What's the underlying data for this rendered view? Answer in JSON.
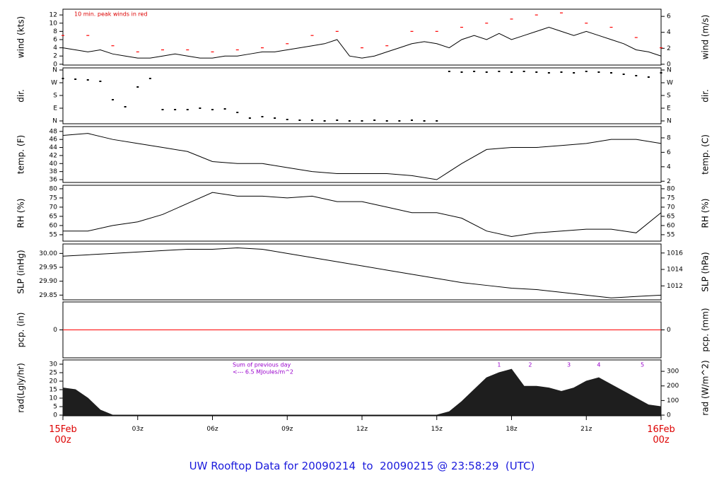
{
  "title": "UW Rooftop Data for 20090214  to  20090215 @ 23:58:29  (UTC)",
  "chart_data": [
    {
      "type": "line",
      "ylabel": "wind (kts)",
      "y2label": "wind (m/s)",
      "xlim": [
        0,
        24
      ],
      "ylim": [
        -0.2,
        13.4
      ],
      "yticks": [
        0,
        2,
        4,
        6,
        8,
        10,
        12
      ],
      "y2lim": [
        -0.1,
        6.9
      ],
      "y2ticks": [
        0,
        2,
        4,
        6
      ],
      "notes": [
        "10 min. peak winds in red"
      ],
      "note_color": "#dd0000",
      "series": [
        {
          "style": "line",
          "color": "#000000",
          "x": [
            0,
            0.5,
            1,
            1.5,
            2,
            2.5,
            3,
            3.5,
            4,
            4.5,
            5,
            5.5,
            6,
            6.5,
            7,
            7.5,
            8,
            8.5,
            9,
            9.5,
            10,
            10.5,
            11,
            11.5,
            12,
            12.5,
            13,
            13.5,
            14,
            14.5,
            15,
            15.5,
            16,
            16.5,
            17,
            17.5,
            18,
            18.5,
            19,
            19.5,
            20,
            20.5,
            21,
            21.5,
            22,
            22.5,
            23,
            23.5,
            24
          ],
          "values": [
            4,
            3.5,
            3,
            3.5,
            2.5,
            2,
            1.5,
            1.5,
            2,
            2.5,
            2,
            1.5,
            1.5,
            2,
            2,
            2.5,
            3,
            3,
            3.5,
            4,
            4.5,
            5,
            6,
            2,
            1.5,
            2,
            3,
            4,
            5,
            5.5,
            5,
            4,
            6,
            7,
            6,
            7.5,
            6,
            7,
            8,
            9,
            8,
            7,
            8,
            7,
            6,
            5,
            3.5,
            3,
            2
          ]
        },
        {
          "style": "dash",
          "color": "#ff0000",
          "x": [
            0,
            1,
            2,
            3,
            4,
            5,
            6,
            7,
            8,
            9,
            10,
            11,
            12,
            13,
            14,
            15,
            16,
            17,
            18,
            19,
            20,
            21,
            22,
            23,
            24
          ],
          "values": [
            7,
            7,
            4.5,
            3,
            3.5,
            3.5,
            3,
            3.5,
            4,
            5,
            7,
            8,
            4,
            4.5,
            8,
            8,
            9,
            10,
            11,
            12,
            12.5,
            10,
            9,
            6.5,
            4
          ]
        }
      ]
    },
    {
      "type": "line",
      "ylabel": "dir.",
      "y2label": "dir.",
      "xlim": [
        0,
        24
      ],
      "ylim": [
        -20,
        375
      ],
      "yticks": [
        {
          "value": 0,
          "label": "N"
        },
        {
          "value": 90,
          "label": "E"
        },
        {
          "value": 180,
          "label": "S"
        },
        {
          "value": 270,
          "label": "W"
        },
        {
          "value": 360,
          "label": "N"
        }
      ],
      "y2lim": [
        -20,
        375
      ],
      "y2ticks": [
        {
          "value": 0,
          "label": "N"
        },
        {
          "value": 90,
          "label": "E"
        },
        {
          "value": 180,
          "label": "S"
        },
        {
          "value": 270,
          "label": "W"
        },
        {
          "value": 360,
          "label": "N"
        }
      ],
      "series": [
        {
          "style": "dot",
          "color": "#000000",
          "x": [
            0,
            0.5,
            1,
            1.5,
            2,
            2.5,
            3,
            3.5,
            4,
            4.5,
            5,
            5.5,
            6,
            6.5,
            7,
            7.5,
            8,
            8.5,
            9,
            9.5,
            10,
            10.5,
            11,
            11.5,
            12,
            12.5,
            13,
            13.5,
            14,
            14.5,
            15,
            15.5,
            16,
            16.5,
            17,
            17.5,
            18,
            18.5,
            19,
            19.5,
            20,
            20.5,
            21,
            21.5,
            22,
            22.5,
            23,
            23.5,
            24
          ],
          "values": [
            300,
            295,
            290,
            280,
            150,
            100,
            240,
            300,
            80,
            80,
            80,
            90,
            80,
            85,
            60,
            20,
            30,
            20,
            10,
            5,
            5,
            0,
            5,
            0,
            0,
            5,
            0,
            0,
            5,
            0,
            0,
            350,
            345,
            350,
            345,
            350,
            345,
            350,
            345,
            340,
            345,
            340,
            350,
            345,
            340,
            330,
            320,
            310,
            340
          ]
        }
      ]
    },
    {
      "type": "line",
      "ylabel": "temp. (F)",
      "y2label": "temp. (C)",
      "xlim": [
        0,
        24
      ],
      "ylim": [
        35.3,
        49.2
      ],
      "yticks": [
        36,
        38,
        40,
        42,
        44,
        46,
        48
      ],
      "y2lim": [
        1.83,
        9.56
      ],
      "y2ticks": [
        2,
        4,
        6,
        8
      ],
      "series": [
        {
          "style": "line",
          "color": "#000000",
          "x": [
            0,
            1,
            2,
            3,
            4,
            5,
            6,
            7,
            8,
            9,
            10,
            11,
            12,
            13,
            14,
            15,
            16,
            17,
            18,
            19,
            20,
            21,
            22,
            23,
            24
          ],
          "values": [
            47,
            47.5,
            46,
            45,
            44,
            43,
            40.5,
            40,
            40,
            39,
            38,
            37.5,
            37.5,
            37.5,
            37,
            36,
            40,
            43.5,
            44,
            44,
            44.5,
            45,
            46,
            46,
            45
          ]
        }
      ]
    },
    {
      "type": "line",
      "ylabel": "RH (%)",
      "y2label": "RH (%)",
      "xlim": [
        0,
        24
      ],
      "ylim": [
        51.5,
        81.9
      ],
      "yticks": [
        55,
        60,
        65,
        70,
        75,
        80
      ],
      "y2lim": [
        51.5,
        81.9
      ],
      "y2ticks": [
        55,
        60,
        65,
        70,
        75,
        80
      ],
      "series": [
        {
          "style": "line",
          "color": "#000000",
          "x": [
            0,
            1,
            2,
            3,
            4,
            5,
            6,
            7,
            8,
            9,
            10,
            11,
            12,
            13,
            14,
            15,
            16,
            17,
            18,
            19,
            20,
            21,
            22,
            23,
            24
          ],
          "values": [
            57,
            57,
            60,
            62,
            66,
            72,
            78,
            76,
            76,
            75,
            76,
            73,
            73,
            70,
            67,
            67,
            64,
            57,
            54,
            56,
            57,
            58,
            58,
            56,
            67
          ]
        }
      ]
    },
    {
      "type": "line",
      "ylabel": "SLP (inHg)",
      "y2label": "SLP (hPa)",
      "xlim": [
        0,
        24
      ],
      "ylim": [
        29.833,
        30.034
      ],
      "yticks": [
        {
          "value": 29.85,
          "label": "29.85"
        },
        {
          "value": 29.9,
          "label": "29.90"
        },
        {
          "value": 29.95,
          "label": "29.95"
        },
        {
          "value": 30,
          "label": "30.00"
        }
      ],
      "y2lim": [
        1010.3,
        1017.1
      ],
      "y2ticks": [
        1012,
        1014,
        1016
      ],
      "series": [
        {
          "style": "line",
          "color": "#000000",
          "x": [
            0,
            1,
            2,
            3,
            4,
            5,
            6,
            7,
            8,
            9,
            10,
            11,
            12,
            13,
            14,
            15,
            16,
            17,
            18,
            19,
            20,
            21,
            22,
            23,
            24
          ],
          "values": [
            29.99,
            29.995,
            30,
            30.005,
            30.01,
            30.015,
            30.015,
            30.02,
            30.015,
            30,
            29.985,
            29.97,
            29.955,
            29.94,
            29.925,
            29.91,
            29.895,
            29.885,
            29.875,
            29.87,
            29.86,
            29.85,
            29.84,
            29.845,
            29.85
          ]
        }
      ]
    },
    {
      "type": "line",
      "ylabel": "pcp. (in)",
      "y2label": "pcp. (mm)",
      "xlim": [
        0,
        24
      ],
      "ylim": [
        -1,
        1
      ],
      "yticks": [
        0
      ],
      "y2lim": [
        -25.4,
        25.4
      ],
      "y2ticks": [
        0
      ],
      "series": [
        {
          "style": "line",
          "color": "#ff0000",
          "x": [
            0,
            24
          ],
          "values": [
            0,
            0
          ]
        }
      ]
    },
    {
      "type": "line",
      "ylabel": "rad(Lgly/hr)",
      "y2label": "rad (W/m^2)",
      "xlim": [
        0,
        24
      ],
      "ylim": [
        -0.4,
        32.5
      ],
      "yticks": [
        0,
        5,
        10,
        15,
        20,
        25,
        30
      ],
      "y2lim": [
        -4.7,
        378
      ],
      "y2ticks": [
        0,
        100,
        200,
        300
      ],
      "notes": [
        "Sum of previous day",
        "<--- 6.5 MJoules/m^2"
      ],
      "note_color": "#9900cc",
      "markers": [
        {
          "x": 17.5,
          "label": "1"
        },
        {
          "x": 18.75,
          "label": "2"
        },
        {
          "x": 20.3,
          "label": "3"
        },
        {
          "x": 21.5,
          "label": "4"
        },
        {
          "x": 23.25,
          "label": "5"
        }
      ],
      "xticks": [
        {
          "value": 0,
          "label": "15Feb\n00z"
        },
        {
          "value": 3,
          "label": "03z"
        },
        {
          "value": 6,
          "label": "06z"
        },
        {
          "value": 9,
          "label": "09z"
        },
        {
          "value": 12,
          "label": "12z"
        },
        {
          "value": 15,
          "label": "15z"
        },
        {
          "value": 18,
          "label": "18z"
        },
        {
          "value": 21,
          "label": "21z"
        },
        {
          "value": 24,
          "label": "16Feb\n00z"
        }
      ],
      "series": [
        {
          "style": "area",
          "color": "#1e1e1e",
          "x": [
            0,
            0.5,
            1,
            1.5,
            2,
            15,
            15.5,
            16,
            16.5,
            17,
            17.5,
            18,
            18.5,
            19,
            19.5,
            20,
            20.5,
            21,
            21.5,
            22,
            22.5,
            23,
            23.5,
            24
          ],
          "values": [
            16,
            15,
            10,
            3,
            0,
            0,
            2,
            8,
            15,
            22,
            25,
            27,
            17,
            17,
            16,
            14,
            16,
            20,
            22,
            18,
            14,
            10,
            6,
            5
          ]
        }
      ]
    }
  ]
}
